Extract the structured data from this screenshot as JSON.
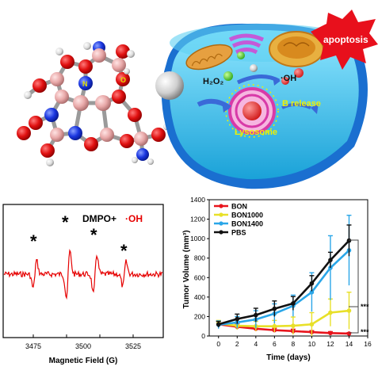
{
  "molecule_panel": {
    "atom_labels": {
      "n": "N",
      "o": "O"
    }
  },
  "cell_panel": {
    "labels": {
      "h2o2": "H₂O₂",
      "oh": "·OH",
      "apoptosis": "apoptosis",
      "b_release": "B release",
      "lysosome": "Lysosome"
    }
  },
  "epr_panel": {
    "title_prefix": "DMPO+",
    "title_suffix": "·OH",
    "peak_marker": "*",
    "x_ticks": [
      "3475",
      "3500",
      "3525"
    ],
    "xlabel": "Magnetic Field (G)",
    "colors": {
      "trace": "#e60000",
      "accent": "#e60000"
    }
  },
  "chart_data": {
    "type": "line",
    "xlabel": "Time (days)",
    "ylabel": "Tumor Volume (mm³)",
    "x": [
      0,
      2,
      4,
      6,
      8,
      10,
      12,
      14
    ],
    "x_ticks": [
      "0",
      "2",
      "4",
      "6",
      "8",
      "10",
      "12",
      "14",
      "16"
    ],
    "y_ticks": [
      "0",
      "200",
      "400",
      "600",
      "800",
      "1000",
      "1200",
      "1400"
    ],
    "xlim": [
      -1,
      16
    ],
    "ylim": [
      0,
      1400
    ],
    "legend_position": "top-left",
    "series": [
      {
        "name": "BON",
        "color": "#e8141c",
        "values": [
          120,
          95,
          75,
          60,
          50,
          40,
          30,
          25
        ],
        "errors": [
          35,
          30,
          25,
          20,
          20,
          15,
          15,
          10
        ]
      },
      {
        "name": "BON1000",
        "color": "#e8e028",
        "values": [
          130,
          105,
          100,
          100,
          105,
          120,
          240,
          260
        ],
        "errors": [
          30,
          40,
          50,
          60,
          90,
          120,
          140,
          190
        ]
      },
      {
        "name": "BON1400",
        "color": "#2aa6e8",
        "values": [
          115,
          140,
          170,
          230,
          310,
          450,
          700,
          880
        ],
        "errors": [
          40,
          60,
          90,
          100,
          110,
          200,
          330,
          360
        ]
      },
      {
        "name": "PBS",
        "color": "#111111",
        "values": [
          120,
          175,
          215,
          280,
          335,
          540,
          780,
          980
        ],
        "errors": [
          30,
          50,
          70,
          80,
          70,
          80,
          80,
          160
        ]
      }
    ],
    "annotations": [
      "***",
      "***"
    ]
  }
}
